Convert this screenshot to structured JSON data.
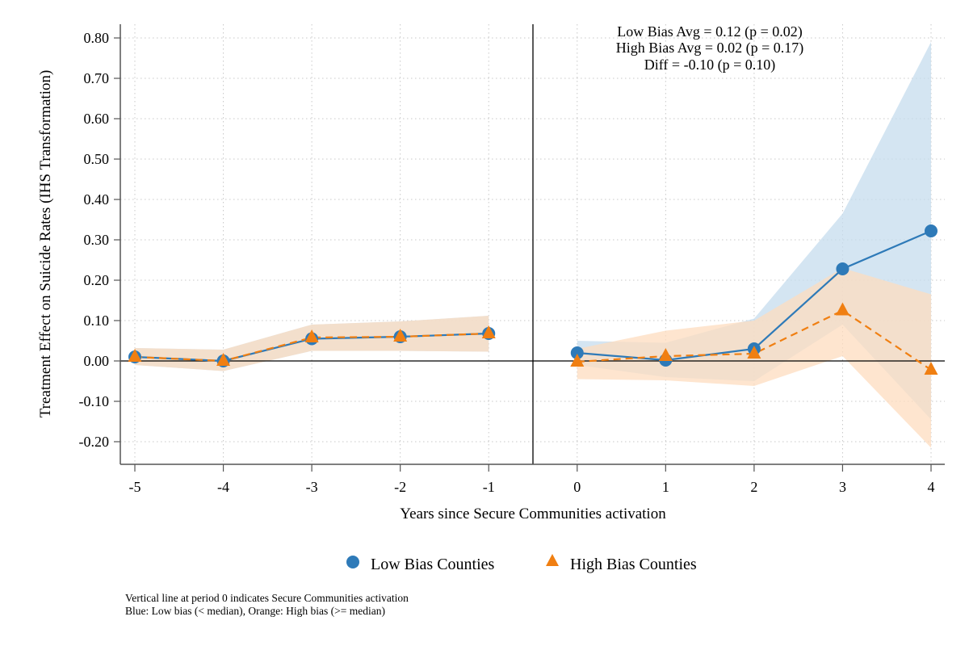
{
  "chart_data": {
    "type": "line",
    "xlabel": "Years since Secure Communities activation",
    "ylabel": "Treatment Effect on Suicide Rates (IHS Transformation)",
    "x": [
      -5,
      -4,
      -3,
      -2,
      -1,
      0,
      1,
      2,
      3,
      4
    ],
    "xlim": [
      -5,
      4
    ],
    "ylim": [
      -0.2,
      0.8
    ],
    "yticks": [
      "0.80",
      "0.70",
      "0.60",
      "0.50",
      "0.40",
      "0.30",
      "0.20",
      "0.10",
      "0.00",
      "-0.10",
      "-0.20"
    ],
    "ytick_values": [
      0.8,
      0.7,
      0.6,
      0.5,
      0.4,
      0.3,
      0.2,
      0.1,
      0.0,
      -0.1,
      -0.2
    ],
    "xticks": [
      "-5",
      "-4",
      "-3",
      "-2",
      "-1",
      "0",
      "1",
      "2",
      "3",
      "4"
    ],
    "grid": true,
    "vertical_line_x": -0.5,
    "horizontal_line_y": 0,
    "series": [
      {
        "name": "Low Bias Counties",
        "color": "#2e7ab8",
        "band_color": "#c6dced",
        "marker": "circle",
        "linestyle": "solid",
        "values": [
          0.01,
          0.0,
          0.055,
          0.06,
          0.068,
          0.02,
          0.002,
          0.03,
          0.228,
          0.322
        ],
        "ci_low": [
          -0.01,
          -0.025,
          0.025,
          0.025,
          0.023,
          -0.01,
          -0.04,
          -0.05,
          0.09,
          -0.145
        ],
        "ci_high": [
          0.032,
          0.028,
          0.09,
          0.098,
          0.112,
          0.05,
          0.045,
          0.105,
          0.365,
          0.79
        ]
      },
      {
        "name": "High Bias Counties",
        "color": "#f07f12",
        "band_color": "#fddcbf",
        "marker": "triangle",
        "linestyle": "dashed",
        "values": [
          0.01,
          0.0,
          0.058,
          0.06,
          0.068,
          -0.002,
          0.012,
          0.018,
          0.125,
          -0.022
        ],
        "ci_low": [
          -0.01,
          -0.025,
          0.025,
          0.025,
          0.023,
          -0.045,
          -0.048,
          -0.062,
          0.012,
          -0.215
        ],
        "ci_high": [
          0.032,
          0.028,
          0.09,
          0.098,
          0.112,
          0.03,
          0.075,
          0.1,
          0.23,
          0.165
        ]
      }
    ],
    "annotations": [
      "Low Bias Avg = 0.12 (p = 0.02)",
      "High Bias Avg = 0.02 (p = 0.17)",
      "Diff = -0.10 (p = 0.10)"
    ],
    "legend_position": "bottom"
  },
  "notes": [
    "Vertical line at period 0 indicates Secure Communities activation",
    "Blue: Low bias (< median), Orange: High bias (>= median)"
  ]
}
